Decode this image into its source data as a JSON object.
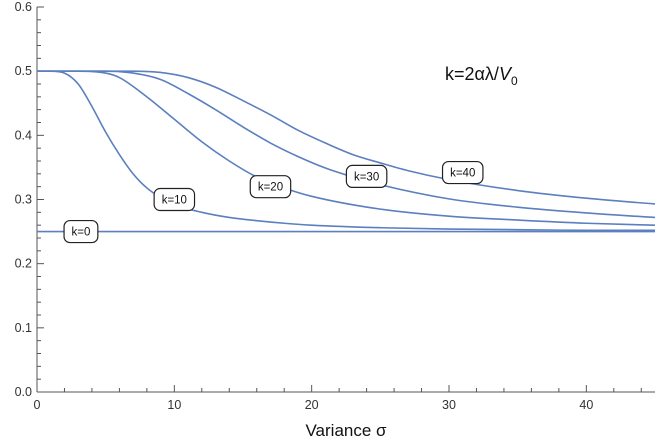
{
  "chart_data": {
    "type": "line",
    "title": "",
    "xlabel": "Variance σ",
    "ylabel": "",
    "xlim": [
      0,
      45
    ],
    "ylim": [
      0,
      0.6
    ],
    "x_ticks": [
      "0",
      "10",
      "20",
      "30",
      "40"
    ],
    "y_ticks": [
      "0.0",
      "0.1",
      "0.2",
      "0.3",
      "0.4",
      "0.5",
      "0.6"
    ],
    "annotation": "k=2αλ/V0",
    "grid": false,
    "line_color": "#5b7fbf",
    "series": [
      {
        "name": "k=0",
        "x": [
          0,
          5,
          10,
          15,
          20,
          25,
          30,
          35,
          40,
          45
        ],
        "y": [
          0.25,
          0.25,
          0.25,
          0.25,
          0.25,
          0.25,
          0.25,
          0.25,
          0.25,
          0.25
        ]
      },
      {
        "name": "k=10",
        "x": [
          0,
          1,
          2,
          3,
          4,
          5,
          6,
          7,
          8,
          9,
          10,
          12,
          14,
          16,
          18,
          20,
          25,
          30,
          35,
          40,
          45
        ],
        "y": [
          0.5,
          0.5,
          0.497,
          0.48,
          0.445,
          0.405,
          0.37,
          0.34,
          0.318,
          0.303,
          0.292,
          0.28,
          0.272,
          0.267,
          0.263,
          0.26,
          0.256,
          0.254,
          0.253,
          0.252,
          0.252
        ]
      },
      {
        "name": "k=20",
        "x": [
          0,
          3,
          5,
          6,
          8,
          10,
          12,
          14,
          16,
          18,
          20,
          25,
          30,
          35,
          40,
          45
        ],
        "y": [
          0.5,
          0.5,
          0.497,
          0.49,
          0.46,
          0.425,
          0.39,
          0.36,
          0.335,
          0.318,
          0.305,
          0.285,
          0.274,
          0.268,
          0.263,
          0.26
        ]
      },
      {
        "name": "k=30",
        "x": [
          0,
          5,
          7,
          9,
          11,
          13,
          15,
          17,
          19,
          21,
          23,
          25,
          30,
          35,
          40,
          45
        ],
        "y": [
          0.5,
          0.5,
          0.497,
          0.487,
          0.465,
          0.44,
          0.413,
          0.388,
          0.367,
          0.349,
          0.335,
          0.323,
          0.301,
          0.288,
          0.279,
          0.272
        ]
      },
      {
        "name": "k=40",
        "x": [
          0,
          7,
          9,
          11,
          13,
          15,
          17,
          19,
          21,
          23,
          25,
          27,
          30,
          35,
          40,
          45
        ],
        "y": [
          0.5,
          0.5,
          0.498,
          0.49,
          0.475,
          0.454,
          0.432,
          0.408,
          0.388,
          0.37,
          0.357,
          0.345,
          0.331,
          0.314,
          0.302,
          0.293
        ]
      }
    ],
    "curve_labels": [
      {
        "text": "k=0",
        "x": 3.2,
        "y": 0.25
      },
      {
        "text": "k=10",
        "x": 10.0,
        "y": 0.3
      },
      {
        "text": "k=20",
        "x": 17.0,
        "y": 0.32
      },
      {
        "text": "k=30",
        "x": 24.0,
        "y": 0.336
      },
      {
        "text": "k=40",
        "x": 31.0,
        "y": 0.342
      }
    ]
  }
}
